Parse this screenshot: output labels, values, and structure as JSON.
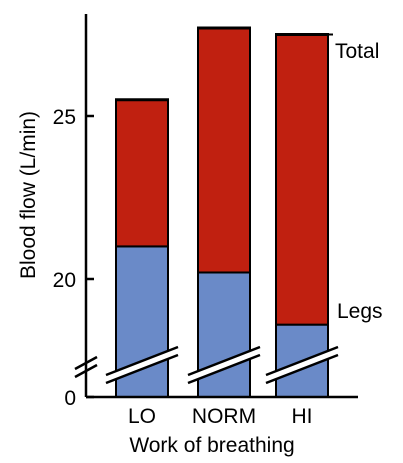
{
  "chart_data": {
    "type": "bar",
    "stacked": true,
    "xlabel": "Work of breathing",
    "ylabel": "Blood flow (L/min)",
    "categories": [
      "LO",
      "NORM",
      "HI"
    ],
    "series": [
      {
        "name": "Legs",
        "color": "#6a8ac8",
        "values": [
          21.0,
          20.2,
          18.6
        ]
      },
      {
        "name": "Total",
        "color": "#c02010",
        "values": [
          25.5,
          27.7,
          27.5
        ]
      }
    ],
    "y_ticks": [
      {
        "value": 0,
        "label": "0"
      },
      {
        "value": 20,
        "label": "20"
      },
      {
        "value": 25,
        "label": "25"
      }
    ],
    "axis_break": {
      "from": 0,
      "to": 17.5
    },
    "ylim": [
      17.5,
      28.5
    ],
    "grid": false,
    "legend": "direct labels at right"
  }
}
